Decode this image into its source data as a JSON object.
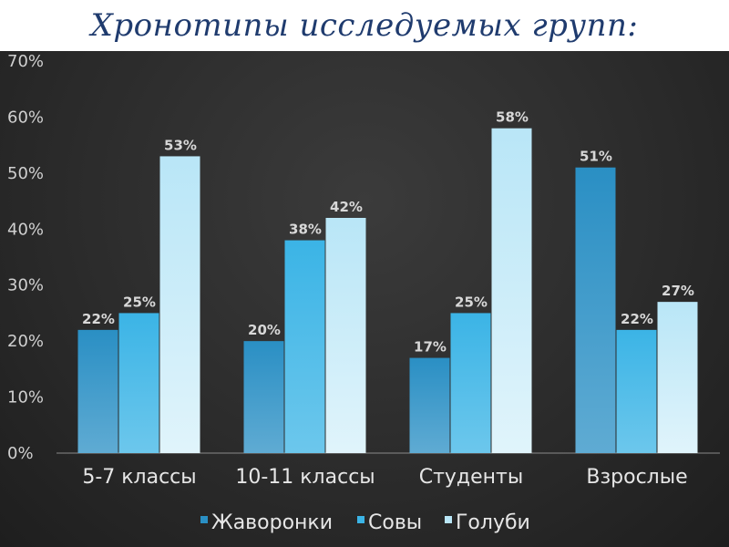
{
  "slide": {
    "title": "Хронотипы исследуемых групп:"
  },
  "colors": {
    "title": "#1f3b6e",
    "background": "#2b2b2b",
    "series": [
      "#2a8fc4",
      "#3bb4e6",
      "#b9e6f7"
    ]
  },
  "chart_data": {
    "type": "bar",
    "title": "",
    "xlabel": "",
    "ylabel": "",
    "categories": [
      "5-7 классы",
      "10-11 классы",
      "Студенты",
      "Взрослые"
    ],
    "series": [
      {
        "name": "Жаворонки",
        "values": [
          22,
          20,
          17,
          51
        ],
        "labels": [
          "22%",
          "20%",
          "17%",
          "51%"
        ]
      },
      {
        "name": "Совы",
        "values": [
          25,
          38,
          25,
          22
        ],
        "labels": [
          "25%",
          "38%",
          "25%",
          "22%"
        ]
      },
      {
        "name": "Голуби",
        "values": [
          53,
          42,
          58,
          27
        ],
        "labels": [
          "53%",
          "42%",
          "58%",
          "27%"
        ]
      }
    ],
    "ylim": [
      0,
      70
    ],
    "yticks": [
      "0%",
      "10%",
      "20%",
      "30%",
      "40%",
      "50%",
      "60%",
      "70%"
    ],
    "grid": false,
    "legend_position": "bottom"
  }
}
